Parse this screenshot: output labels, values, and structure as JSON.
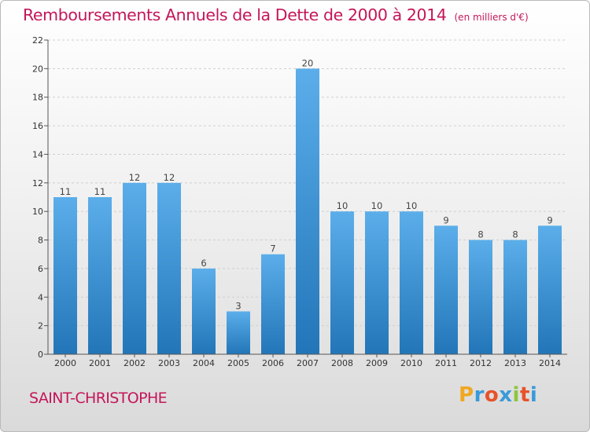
{
  "title": {
    "main": "Remboursements Annuels de la Dette de 2000 à 2014",
    "unit": "(en milliers d'€)"
  },
  "place": "SAINT-CHRISTOPHE",
  "brand": {
    "name": "Proxiti",
    "letters": [
      "P",
      "r",
      "o",
      "x",
      "i",
      "t",
      "i"
    ],
    "letter_colors": [
      "#f0a722",
      "#3a9ad9",
      "#e7522a",
      "#3a9ad9",
      "#8cc63f",
      "#e7522a",
      "#3a9ad9"
    ]
  },
  "colors": {
    "title": "#c4165a",
    "bar_top": "#5baeea",
    "bar_bottom": "#2276b8",
    "grid": "#cfcfcf",
    "axis": "#555555"
  },
  "chart_data": {
    "type": "bar",
    "categories": [
      "2000",
      "2001",
      "2002",
      "2003",
      "2004",
      "2005",
      "2006",
      "2007",
      "2008",
      "2009",
      "2010",
      "2011",
      "2012",
      "2013",
      "2014"
    ],
    "values": [
      11,
      11,
      12,
      12,
      6,
      3,
      7,
      20,
      10,
      10,
      10,
      9,
      8,
      8,
      9
    ],
    "data_labels": [
      "11",
      "11",
      "12",
      "12",
      "6",
      "3",
      "7",
      "20",
      "10",
      "10",
      "10",
      "9",
      "8",
      "8",
      "9"
    ],
    "ylim": [
      0,
      22
    ],
    "yticks": [
      0,
      2,
      4,
      6,
      8,
      10,
      12,
      14,
      16,
      18,
      20,
      22
    ],
    "grid": true,
    "legend": false
  }
}
